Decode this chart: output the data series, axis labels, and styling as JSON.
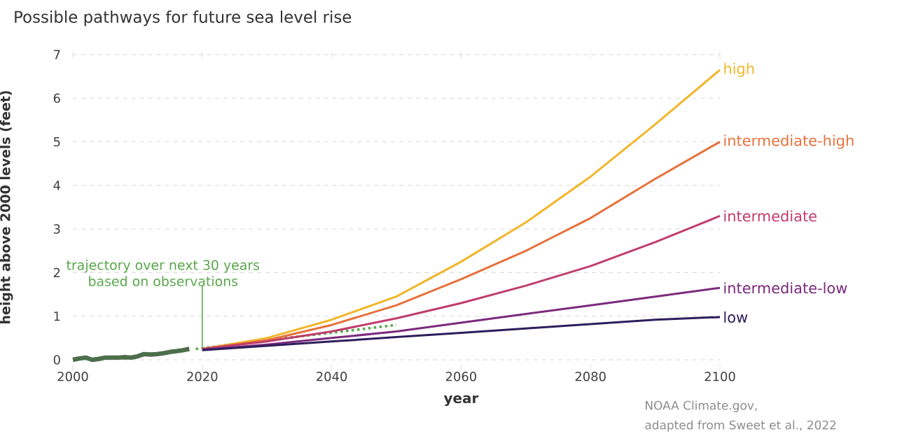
{
  "chart_data": {
    "type": "line",
    "title": "Possible pathways for future sea level rise",
    "xlabel": "year",
    "ylabel": "height above 2000 levels (feet)",
    "xlim": [
      2000,
      2100
    ],
    "ylim": [
      0,
      7
    ],
    "xticks": [
      2000,
      2020,
      2040,
      2060,
      2080,
      2100
    ],
    "yticks": [
      0,
      1,
      2,
      3,
      4,
      5,
      6,
      7
    ],
    "grid": "y",
    "marker": "none",
    "annotations": [
      {
        "text": "trajectory over next 30 years",
        "x": 2020,
        "y": 0.3
      },
      "based on observations",
      "NOAA Climate.gov,",
      "adapted from Sweet et al., 2022"
    ],
    "series": [
      {
        "color": "#4d6e4b",
        "line_style": "solid",
        "x": [
          2000,
          2001,
          2002,
          2003,
          2004,
          2005,
          2006,
          2007,
          2008,
          2009,
          2010,
          2011,
          2012,
          2013,
          2014,
          2015,
          2016,
          2017,
          2018
        ],
        "values": [
          0.0,
          0.03,
          0.05,
          0.0,
          0.02,
          0.05,
          0.05,
          0.05,
          0.06,
          0.05,
          0.08,
          0.13,
          0.12,
          0.13,
          0.15,
          0.18,
          0.2,
          0.22,
          0.25
        ]
      },
      {
        "color": "#5aa84c",
        "line_style": "dotted",
        "x": [
          2019,
          2030,
          2040,
          2050
        ],
        "values": [
          0.25,
          0.45,
          0.62,
          0.8
        ]
      },
      {
        "name": "high",
        "color": "#f2b52a",
        "line_style": "solid",
        "x": [
          2020,
          2030,
          2040,
          2050,
          2060,
          2070,
          2080,
          2090,
          2100
        ],
        "values": [
          0.25,
          0.5,
          0.92,
          1.45,
          2.25,
          3.15,
          4.2,
          5.4,
          6.65
        ]
      },
      {
        "name": "intermediate-high",
        "color": "#e8703a",
        "line_style": "solid",
        "x": [
          2020,
          2030,
          2040,
          2050,
          2060,
          2070,
          2080,
          2090,
          2100
        ],
        "values": [
          0.25,
          0.45,
          0.8,
          1.25,
          1.85,
          2.5,
          3.25,
          4.15,
          5.0
        ]
      },
      {
        "name": "intermediate",
        "color": "#c03c6c",
        "line_style": "solid",
        "x": [
          2020,
          2030,
          2040,
          2050,
          2060,
          2070,
          2080,
          2090,
          2100
        ],
        "values": [
          0.25,
          0.42,
          0.65,
          0.95,
          1.3,
          1.7,
          2.15,
          2.7,
          3.3
        ]
      },
      {
        "name": "intermediate-low",
        "color": "#7b2a7e",
        "line_style": "solid",
        "x": [
          2020,
          2030,
          2040,
          2050,
          2060,
          2070,
          2080,
          2090,
          2100
        ],
        "values": [
          0.23,
          0.35,
          0.5,
          0.65,
          0.85,
          1.05,
          1.25,
          1.45,
          1.65
        ]
      },
      {
        "name": "low",
        "color": "#2e1d5b",
        "line_style": "solid",
        "x": [
          2020,
          2030,
          2040,
          2050,
          2060,
          2070,
          2080,
          2090,
          2100
        ],
        "values": [
          0.22,
          0.32,
          0.42,
          0.52,
          0.62,
          0.72,
          0.82,
          0.92,
          0.98
        ]
      }
    ]
  }
}
